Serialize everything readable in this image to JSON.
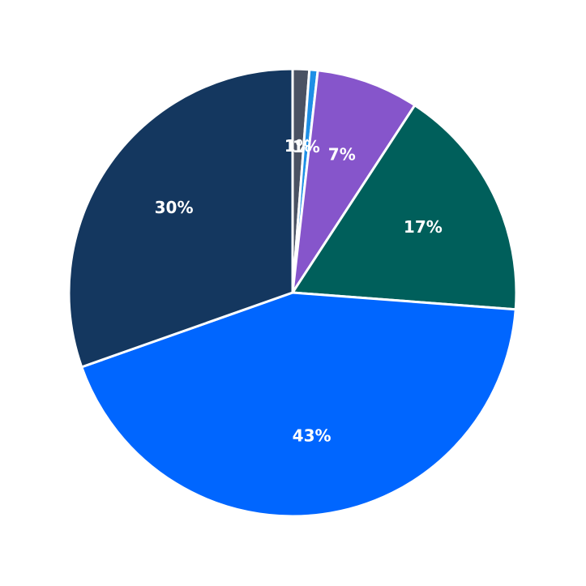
{
  "chart_data": {
    "type": "pie",
    "categories": [
      null,
      null,
      null,
      null,
      null,
      null
    ],
    "values": [
      1.2,
      0.6,
      7.4,
      17,
      43.4,
      30.4
    ],
    "value_labels": [
      "1%",
      "1%",
      "7%",
      "17%",
      "43%",
      "30%"
    ],
    "colors": [
      "#4a5263",
      "#1e8fe6",
      "#8655cb",
      "#005f5b",
      "#0066ff",
      "#14375f"
    ]
  }
}
